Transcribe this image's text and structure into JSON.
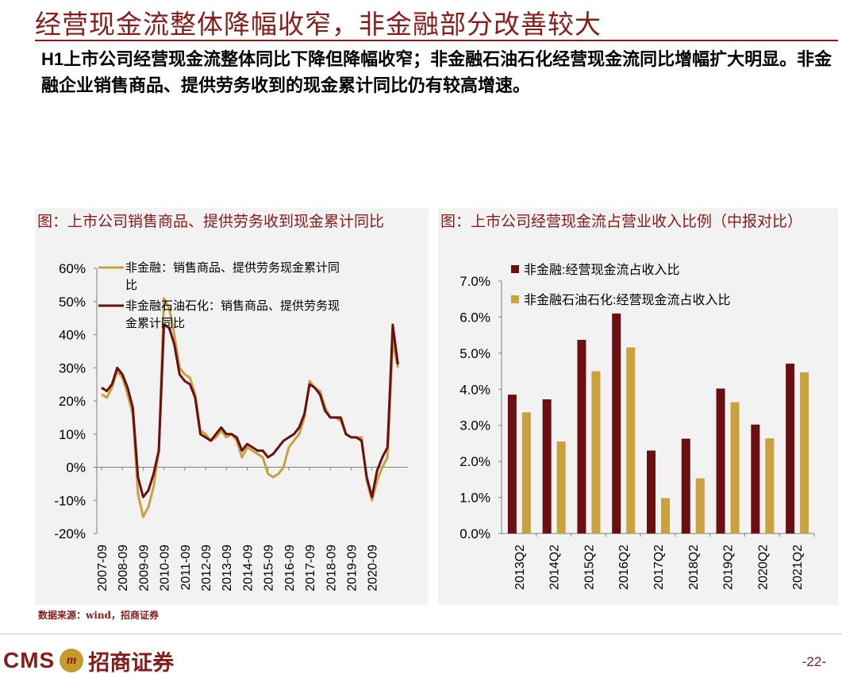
{
  "page": {
    "title": "经营现金流整体降幅收窄，非金融部分改善较大",
    "intro_prefix": "H1",
    "intro_text": "上市公司经营现金流整体同比下降但降幅收窄；非金融石油石化经营现金流同比增幅扩大明显。非金融企业销售商品、提供劳务收到的现金累计同比仍有较高增速。",
    "source": "数据来源：wind，招商证券",
    "logo_cms": "CMS",
    "logo_mark": "m",
    "logo_name": "招商证券",
    "page_number": "-22-"
  },
  "colors": {
    "title": "#8b1a1a",
    "series_dark": "#6b0f12",
    "series_gold": "#c9a13f",
    "panel_bg": "#f2f2f2"
  },
  "chart_data": [
    {
      "type": "line",
      "title": "图：上市公司销售商品、提供劳务收到现金累计同比",
      "ylim": [
        -20,
        60
      ],
      "yticks": [
        -20,
        -10,
        0,
        10,
        20,
        30,
        40,
        50,
        60
      ],
      "ytick_labels": [
        "-20%",
        "-10%",
        "0%",
        "10%",
        "20%",
        "30%",
        "40%",
        "50%",
        "60%"
      ],
      "x_tick_labels": [
        "2007-09",
        "2008-09",
        "2009-09",
        "2010-09",
        "2011-09",
        "2012-09",
        "2013-09",
        "2014-09",
        "2015-09",
        "2016-09",
        "2017-09",
        "2018-09",
        "2019-09",
        "2020-09"
      ],
      "x_start": 2007.0,
      "x_end": 2021.5,
      "legend_position": "top-left",
      "series": [
        {
          "name": "非金融：销售商品、提供劳务现金累计同比",
          "color": "#c9a13f",
          "points": [
            [
              2007.0,
              22
            ],
            [
              2007.25,
              21
            ],
            [
              2007.5,
              24
            ],
            [
              2007.75,
              29
            ],
            [
              2008.0,
              27
            ],
            [
              2008.25,
              22
            ],
            [
              2008.5,
              16
            ],
            [
              2008.75,
              -8
            ],
            [
              2009.0,
              -15
            ],
            [
              2009.25,
              -12
            ],
            [
              2009.5,
              -6
            ],
            [
              2009.75,
              5
            ],
            [
              2010.0,
              51
            ],
            [
              2010.25,
              48
            ],
            [
              2010.5,
              40
            ],
            [
              2010.75,
              30
            ],
            [
              2011.0,
              28
            ],
            [
              2011.25,
              27
            ],
            [
              2011.5,
              22
            ],
            [
              2011.75,
              11
            ],
            [
              2012.0,
              10
            ],
            [
              2012.25,
              8
            ],
            [
              2012.5,
              9
            ],
            [
              2012.75,
              11
            ],
            [
              2013.0,
              9
            ],
            [
              2013.25,
              10
            ],
            [
              2013.5,
              8
            ],
            [
              2013.75,
              3
            ],
            [
              2014.0,
              6
            ],
            [
              2014.25,
              5
            ],
            [
              2014.5,
              4
            ],
            [
              2014.75,
              3
            ],
            [
              2015.0,
              -2
            ],
            [
              2015.25,
              -3
            ],
            [
              2015.5,
              -2
            ],
            [
              2015.75,
              0
            ],
            [
              2016.0,
              6
            ],
            [
              2016.25,
              8
            ],
            [
              2016.5,
              10
            ],
            [
              2016.75,
              15
            ],
            [
              2017.0,
              26
            ],
            [
              2017.25,
              24
            ],
            [
              2017.5,
              23
            ],
            [
              2017.75,
              18
            ],
            [
              2018.0,
              15
            ],
            [
              2018.25,
              15
            ],
            [
              2018.5,
              14
            ],
            [
              2018.75,
              10
            ],
            [
              2019.0,
              9
            ],
            [
              2019.25,
              9
            ],
            [
              2019.5,
              9
            ],
            [
              2019.75,
              -4
            ],
            [
              2020.0,
              -10
            ],
            [
              2020.25,
              -4
            ],
            [
              2020.5,
              0
            ],
            [
              2020.75,
              3
            ],
            [
              2021.0,
              38
            ],
            [
              2021.25,
              30
            ]
          ]
        },
        {
          "name": "非金融石油石化：销售商品、提供劳务现金累计同比",
          "color": "#6b0f12",
          "points": [
            [
              2007.0,
              24
            ],
            [
              2007.25,
              23
            ],
            [
              2007.5,
              25
            ],
            [
              2007.75,
              30
            ],
            [
              2008.0,
              28
            ],
            [
              2008.25,
              24
            ],
            [
              2008.5,
              18
            ],
            [
              2008.75,
              -3
            ],
            [
              2009.0,
              -9
            ],
            [
              2009.25,
              -7
            ],
            [
              2009.5,
              -2
            ],
            [
              2009.75,
              5
            ],
            [
              2010.0,
              43
            ],
            [
              2010.25,
              42
            ],
            [
              2010.5,
              37
            ],
            [
              2010.75,
              28
            ],
            [
              2011.0,
              26
            ],
            [
              2011.25,
              25
            ],
            [
              2011.5,
              21
            ],
            [
              2011.75,
              10
            ],
            [
              2012.0,
              9
            ],
            [
              2012.25,
              8
            ],
            [
              2012.5,
              10
            ],
            [
              2012.75,
              12
            ],
            [
              2013.0,
              10
            ],
            [
              2013.25,
              10
            ],
            [
              2013.5,
              9
            ],
            [
              2013.75,
              5
            ],
            [
              2014.0,
              7
            ],
            [
              2014.25,
              6
            ],
            [
              2014.5,
              5
            ],
            [
              2014.75,
              5
            ],
            [
              2015.0,
              3
            ],
            [
              2015.25,
              4
            ],
            [
              2015.5,
              6
            ],
            [
              2015.75,
              8
            ],
            [
              2016.0,
              9
            ],
            [
              2016.25,
              10
            ],
            [
              2016.5,
              12
            ],
            [
              2016.75,
              16
            ],
            [
              2017.0,
              25
            ],
            [
              2017.25,
              24
            ],
            [
              2017.5,
              22
            ],
            [
              2017.75,
              17
            ],
            [
              2018.0,
              15
            ],
            [
              2018.25,
              15
            ],
            [
              2018.5,
              15
            ],
            [
              2018.75,
              10
            ],
            [
              2019.0,
              9
            ],
            [
              2019.25,
              9
            ],
            [
              2019.5,
              8
            ],
            [
              2019.75,
              -3
            ],
            [
              2020.0,
              -9
            ],
            [
              2020.25,
              -1
            ],
            [
              2020.5,
              3
            ],
            [
              2020.75,
              6
            ],
            [
              2021.0,
              43
            ],
            [
              2021.25,
              31
            ]
          ]
        }
      ]
    },
    {
      "type": "bar",
      "title": "图：上市公司经营现金流占营业收入比例（中报对比）",
      "ylim": [
        0,
        7
      ],
      "yticks": [
        0,
        1,
        2,
        3,
        4,
        5,
        6,
        7
      ],
      "ytick_labels": [
        "0.0%",
        "1.0%",
        "2.0%",
        "3.0%",
        "4.0%",
        "5.0%",
        "6.0%",
        "7.0%"
      ],
      "categories": [
        "2013Q2",
        "2014Q2",
        "2015Q2",
        "2016Q2",
        "2017Q2",
        "2018Q2",
        "2019Q2",
        "2020Q2",
        "2021Q2"
      ],
      "legend_position": "top-left",
      "series": [
        {
          "name": "非金融:经营现金流占收入比",
          "color": "#6b0f12",
          "values": [
            3.85,
            3.72,
            5.37,
            6.1,
            2.3,
            2.63,
            4.02,
            3.02,
            4.71
          ]
        },
        {
          "name": "非金融石油石化:经营现金流占收入比",
          "color": "#c9a13f",
          "values": [
            3.36,
            2.55,
            4.5,
            5.16,
            0.98,
            1.53,
            3.64,
            2.64,
            4.47
          ]
        }
      ]
    }
  ]
}
